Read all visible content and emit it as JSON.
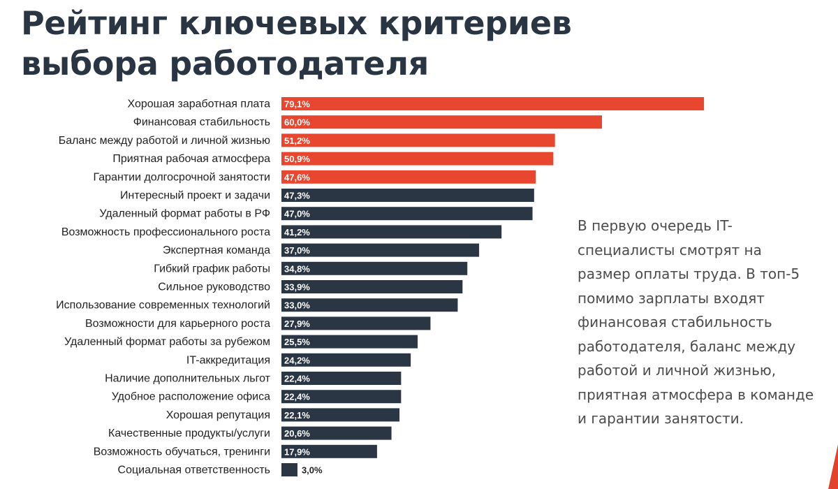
{
  "title": "Рейтинг ключевых критериев выбора работодателя",
  "note": "В первую очередь IT-специалисты смотрят на размер оплаты труда. В топ-5 помимо зарплаты входят финансовая стабильность работодателя, баланс между работой и личной жизнью, приятная атмосфера в команде и гарантии занятости.",
  "colors": {
    "highlight": "#e8462e",
    "default": "#2b3645",
    "title": "#2a3543",
    "accent_edge": "#e2432c"
  },
  "chart_data": {
    "type": "bar",
    "orientation": "horizontal",
    "value_unit": "%",
    "xlim": [
      0,
      100
    ],
    "grid": false,
    "legend": "none",
    "highlight_top_n": 5,
    "categories": [
      "Хорошая заработная плата",
      "Финансовая стабильность",
      "Баланс между работой и личной жизнью",
      "Приятная рабочая атмосфера",
      "Гарантии долгосрочной занятости",
      "Интересный проект и задачи",
      "Удаленный формат работы в РФ",
      "Возможность профессионального роста",
      "Экспертная команда",
      "Гибкий график работы",
      "Сильное руководство",
      "Использование современных технологий",
      "Возможности для карьерного роста",
      "Удаленный формат работы за рубежом",
      "IT-аккредитация",
      "Наличие дополнительных льгот",
      "Удобное расположение офиса",
      "Хорошая репутация",
      "Качественные продукты/услуги",
      "Возможность обучаться, тренинги",
      "Социальная ответственность"
    ],
    "values": [
      79.1,
      60.0,
      51.2,
      50.9,
      47.6,
      47.3,
      47.0,
      41.2,
      37.0,
      34.8,
      33.9,
      33.0,
      27.9,
      25.5,
      24.2,
      22.4,
      22.4,
      22.1,
      20.6,
      17.9,
      3.0
    ],
    "value_labels": [
      "79,1%",
      "60,0%",
      "51,2%",
      "50,9%",
      "47,6%",
      "47,3%",
      "47,0%",
      "41,2%",
      "37,0%",
      "34,8%",
      "33,9%",
      "33,0%",
      "27,9%",
      "25,5%",
      "24,2%",
      "22,4%",
      "22,4%",
      "22,1%",
      "20,6%",
      "17,9%",
      "3,0%"
    ]
  }
}
